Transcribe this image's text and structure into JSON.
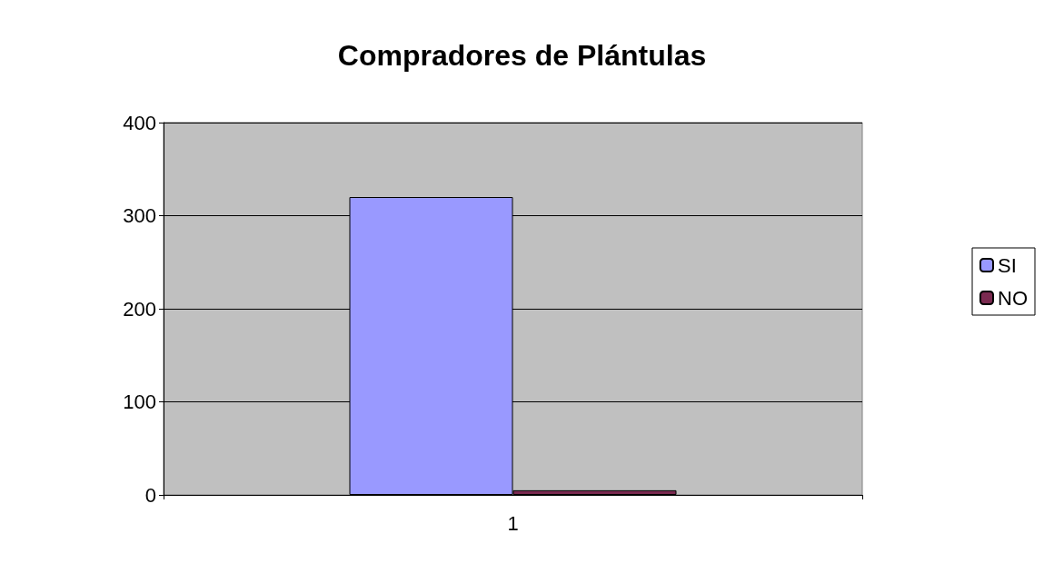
{
  "chart_data": {
    "type": "bar",
    "title": "Compradores de Plántulas",
    "categories": [
      "1"
    ],
    "series": [
      {
        "name": "SI",
        "color": "#9999ff",
        "values": [
          320
        ]
      },
      {
        "name": "NO",
        "color": "#7a2a50",
        "values": [
          5
        ]
      }
    ],
    "ylim": [
      0,
      400
    ],
    "yticks": [
      0,
      100,
      200,
      300,
      400
    ],
    "grid": "y",
    "legend": "right"
  }
}
